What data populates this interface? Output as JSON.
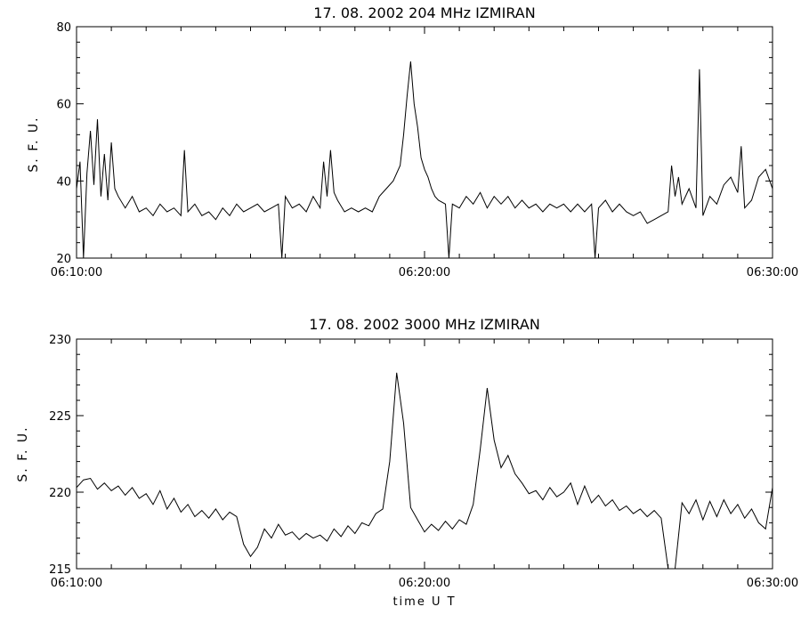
{
  "chart_data": [
    {
      "type": "line",
      "title": "17.  08.  2002    204 MHz    IZMIRAN",
      "ylabel": "S. F. U.",
      "xlabel": "",
      "xlim": [
        "06:10:00",
        "06:30:00"
      ],
      "ylim": [
        20,
        80
      ],
      "xticks": [
        "06:10:00",
        "06:20:00",
        "06:30:00"
      ],
      "yticks": [
        20,
        40,
        60,
        80
      ],
      "series": [
        {
          "values": [
            [
              "06:10:00",
              38
            ],
            [
              "06:10:06",
              45
            ],
            [
              "06:10:12",
              20
            ],
            [
              "06:10:18",
              42
            ],
            [
              "06:10:24",
              53
            ],
            [
              "06:10:30",
              39
            ],
            [
              "06:10:36",
              56
            ],
            [
              "06:10:42",
              36
            ],
            [
              "06:10:48",
              47
            ],
            [
              "06:10:54",
              35
            ],
            [
              "06:11:00",
              50
            ],
            [
              "06:11:06",
              38
            ],
            [
              "06:11:12",
              36
            ],
            [
              "06:11:24",
              33
            ],
            [
              "06:11:36",
              36
            ],
            [
              "06:11:48",
              32
            ],
            [
              "06:12:00",
              33
            ],
            [
              "06:12:12",
              31
            ],
            [
              "06:12:24",
              34
            ],
            [
              "06:12:36",
              32
            ],
            [
              "06:12:48",
              33
            ],
            [
              "06:13:00",
              31
            ],
            [
              "06:13:06",
              48
            ],
            [
              "06:13:12",
              32
            ],
            [
              "06:13:24",
              34
            ],
            [
              "06:13:36",
              31
            ],
            [
              "06:13:48",
              32
            ],
            [
              "06:14:00",
              30
            ],
            [
              "06:14:12",
              33
            ],
            [
              "06:14:24",
              31
            ],
            [
              "06:14:36",
              34
            ],
            [
              "06:14:48",
              32
            ],
            [
              "06:15:00",
              33
            ],
            [
              "06:15:12",
              34
            ],
            [
              "06:15:24",
              32
            ],
            [
              "06:15:36",
              33
            ],
            [
              "06:15:48",
              34
            ],
            [
              "06:15:54",
              20
            ],
            [
              "06:16:00",
              36
            ],
            [
              "06:16:12",
              33
            ],
            [
              "06:16:24",
              34
            ],
            [
              "06:16:36",
              32
            ],
            [
              "06:16:48",
              36
            ],
            [
              "06:17:00",
              33
            ],
            [
              "06:17:06",
              45
            ],
            [
              "06:17:12",
              36
            ],
            [
              "06:17:18",
              48
            ],
            [
              "06:17:24",
              37
            ],
            [
              "06:17:30",
              35
            ],
            [
              "06:17:42",
              32
            ],
            [
              "06:17:54",
              33
            ],
            [
              "06:18:06",
              32
            ],
            [
              "06:18:18",
              33
            ],
            [
              "06:18:30",
              32
            ],
            [
              "06:18:42",
              36
            ],
            [
              "06:18:54",
              38
            ],
            [
              "06:19:06",
              40
            ],
            [
              "06:19:18",
              44
            ],
            [
              "06:19:24",
              52
            ],
            [
              "06:19:30",
              62
            ],
            [
              "06:19:36",
              71
            ],
            [
              "06:19:42",
              60
            ],
            [
              "06:19:48",
              54
            ],
            [
              "06:19:54",
              46
            ],
            [
              "06:20:00",
              43
            ],
            [
              "06:20:06",
              41
            ],
            [
              "06:20:12",
              38
            ],
            [
              "06:20:18",
              36
            ],
            [
              "06:20:24",
              35
            ],
            [
              "06:20:36",
              34
            ],
            [
              "06:20:42",
              20
            ],
            [
              "06:20:48",
              34
            ],
            [
              "06:21:00",
              33
            ],
            [
              "06:21:12",
              36
            ],
            [
              "06:21:24",
              34
            ],
            [
              "06:21:36",
              37
            ],
            [
              "06:21:48",
              33
            ],
            [
              "06:22:00",
              36
            ],
            [
              "06:22:12",
              34
            ],
            [
              "06:22:24",
              36
            ],
            [
              "06:22:36",
              33
            ],
            [
              "06:22:48",
              35
            ],
            [
              "06:23:00",
              33
            ],
            [
              "06:23:12",
              34
            ],
            [
              "06:23:24",
              32
            ],
            [
              "06:23:36",
              34
            ],
            [
              "06:23:48",
              33
            ],
            [
              "06:24:00",
              34
            ],
            [
              "06:24:12",
              32
            ],
            [
              "06:24:24",
              34
            ],
            [
              "06:24:36",
              32
            ],
            [
              "06:24:48",
              34
            ],
            [
              "06:24:54",
              20
            ],
            [
              "06:25:00",
              33
            ],
            [
              "06:25:12",
              35
            ],
            [
              "06:25:24",
              32
            ],
            [
              "06:25:36",
              34
            ],
            [
              "06:25:48",
              32
            ],
            [
              "06:26:00",
              31
            ],
            [
              "06:26:12",
              32
            ],
            [
              "06:26:24",
              29
            ],
            [
              "06:26:36",
              30
            ],
            [
              "06:26:48",
              31
            ],
            [
              "06:27:00",
              32
            ],
            [
              "06:27:06",
              44
            ],
            [
              "06:27:12",
              36
            ],
            [
              "06:27:18",
              41
            ],
            [
              "06:27:24",
              34
            ],
            [
              "06:27:36",
              38
            ],
            [
              "06:27:48",
              33
            ],
            [
              "06:27:54",
              69
            ],
            [
              "06:28:00",
              31
            ],
            [
              "06:28:12",
              36
            ],
            [
              "06:28:24",
              34
            ],
            [
              "06:28:36",
              39
            ],
            [
              "06:28:48",
              41
            ],
            [
              "06:29:00",
              37
            ],
            [
              "06:29:06",
              49
            ],
            [
              "06:29:12",
              33
            ],
            [
              "06:29:24",
              35
            ],
            [
              "06:29:36",
              41
            ],
            [
              "06:29:48",
              43
            ],
            [
              "06:30:00",
              38
            ]
          ]
        }
      ]
    },
    {
      "type": "line",
      "title": "17.  08.  2002    3000 MHz    IZMIRAN",
      "ylabel": "S. F. U.",
      "xlabel": "time   U T",
      "xlim": [
        "06:10:00",
        "06:30:00"
      ],
      "ylim": [
        215,
        230
      ],
      "xticks": [
        "06:10:00",
        "06:20:00",
        "06:30:00"
      ],
      "yticks": [
        215,
        220,
        225,
        230
      ],
      "series": [
        {
          "values": [
            [
              "06:10:00",
              220.3
            ],
            [
              "06:10:12",
              220.8
            ],
            [
              "06:10:24",
              220.9
            ],
            [
              "06:10:36",
              220.2
            ],
            [
              "06:10:48",
              220.6
            ],
            [
              "06:11:00",
              220.1
            ],
            [
              "06:11:12",
              220.4
            ],
            [
              "06:11:24",
              219.8
            ],
            [
              "06:11:36",
              220.3
            ],
            [
              "06:11:48",
              219.6
            ],
            [
              "06:12:00",
              219.9
            ],
            [
              "06:12:12",
              219.2
            ],
            [
              "06:12:24",
              220.1
            ],
            [
              "06:12:36",
              218.9
            ],
            [
              "06:12:48",
              219.6
            ],
            [
              "06:13:00",
              218.7
            ],
            [
              "06:13:12",
              219.2
            ],
            [
              "06:13:24",
              218.4
            ],
            [
              "06:13:36",
              218.8
            ],
            [
              "06:13:48",
              218.3
            ],
            [
              "06:14:00",
              218.9
            ],
            [
              "06:14:12",
              218.2
            ],
            [
              "06:14:24",
              218.7
            ],
            [
              "06:14:36",
              218.4
            ],
            [
              "06:14:48",
              216.6
            ],
            [
              "06:15:00",
              215.8
            ],
            [
              "06:15:12",
              216.4
            ],
            [
              "06:15:24",
              217.6
            ],
            [
              "06:15:36",
              217.0
            ],
            [
              "06:15:48",
              217.9
            ],
            [
              "06:16:00",
              217.2
            ],
            [
              "06:16:12",
              217.4
            ],
            [
              "06:16:24",
              216.9
            ],
            [
              "06:16:36",
              217.3
            ],
            [
              "06:16:48",
              217.0
            ],
            [
              "06:17:00",
              217.2
            ],
            [
              "06:17:12",
              216.8
            ],
            [
              "06:17:24",
              217.6
            ],
            [
              "06:17:36",
              217.1
            ],
            [
              "06:17:48",
              217.8
            ],
            [
              "06:18:00",
              217.3
            ],
            [
              "06:18:12",
              218.0
            ],
            [
              "06:18:24",
              217.8
            ],
            [
              "06:18:36",
              218.6
            ],
            [
              "06:18:48",
              218.9
            ],
            [
              "06:19:00",
              222.0
            ],
            [
              "06:19:12",
              227.8
            ],
            [
              "06:19:24",
              224.5
            ],
            [
              "06:19:36",
              219.0
            ],
            [
              "06:19:48",
              218.2
            ],
            [
              "06:20:00",
              217.4
            ],
            [
              "06:20:12",
              217.9
            ],
            [
              "06:20:24",
              217.5
            ],
            [
              "06:20:36",
              218.1
            ],
            [
              "06:20:48",
              217.6
            ],
            [
              "06:21:00",
              218.2
            ],
            [
              "06:21:12",
              217.9
            ],
            [
              "06:21:24",
              219.2
            ],
            [
              "06:21:36",
              222.8
            ],
            [
              "06:21:48",
              226.8
            ],
            [
              "06:22:00",
              223.4
            ],
            [
              "06:22:12",
              221.6
            ],
            [
              "06:22:24",
              222.4
            ],
            [
              "06:22:36",
              221.2
            ],
            [
              "06:22:48",
              220.6
            ],
            [
              "06:23:00",
              219.9
            ],
            [
              "06:23:12",
              220.1
            ],
            [
              "06:23:24",
              219.5
            ],
            [
              "06:23:36",
              220.3
            ],
            [
              "06:23:48",
              219.7
            ],
            [
              "06:24:00",
              220.0
            ],
            [
              "06:24:12",
              220.6
            ],
            [
              "06:24:24",
              219.2
            ],
            [
              "06:24:36",
              220.4
            ],
            [
              "06:24:48",
              219.3
            ],
            [
              "06:25:00",
              219.8
            ],
            [
              "06:25:12",
              219.1
            ],
            [
              "06:25:24",
              219.5
            ],
            [
              "06:25:36",
              218.8
            ],
            [
              "06:25:48",
              219.1
            ],
            [
              "06:26:00",
              218.6
            ],
            [
              "06:26:12",
              218.9
            ],
            [
              "06:26:24",
              218.4
            ],
            [
              "06:26:36",
              218.8
            ],
            [
              "06:26:48",
              218.3
            ],
            [
              "06:27:00",
              214.6
            ],
            [
              "06:27:12",
              214.8
            ],
            [
              "06:27:24",
              219.3
            ],
            [
              "06:27:36",
              218.6
            ],
            [
              "06:27:48",
              219.5
            ],
            [
              "06:28:00",
              218.2
            ],
            [
              "06:28:12",
              219.4
            ],
            [
              "06:28:24",
              218.4
            ],
            [
              "06:28:36",
              219.5
            ],
            [
              "06:28:48",
              218.6
            ],
            [
              "06:29:00",
              219.2
            ],
            [
              "06:29:12",
              218.3
            ],
            [
              "06:29:24",
              218.9
            ],
            [
              "06:29:36",
              218.0
            ],
            [
              "06:29:48",
              217.6
            ],
            [
              "06:30:00",
              220.3
            ]
          ]
        }
      ]
    }
  ]
}
